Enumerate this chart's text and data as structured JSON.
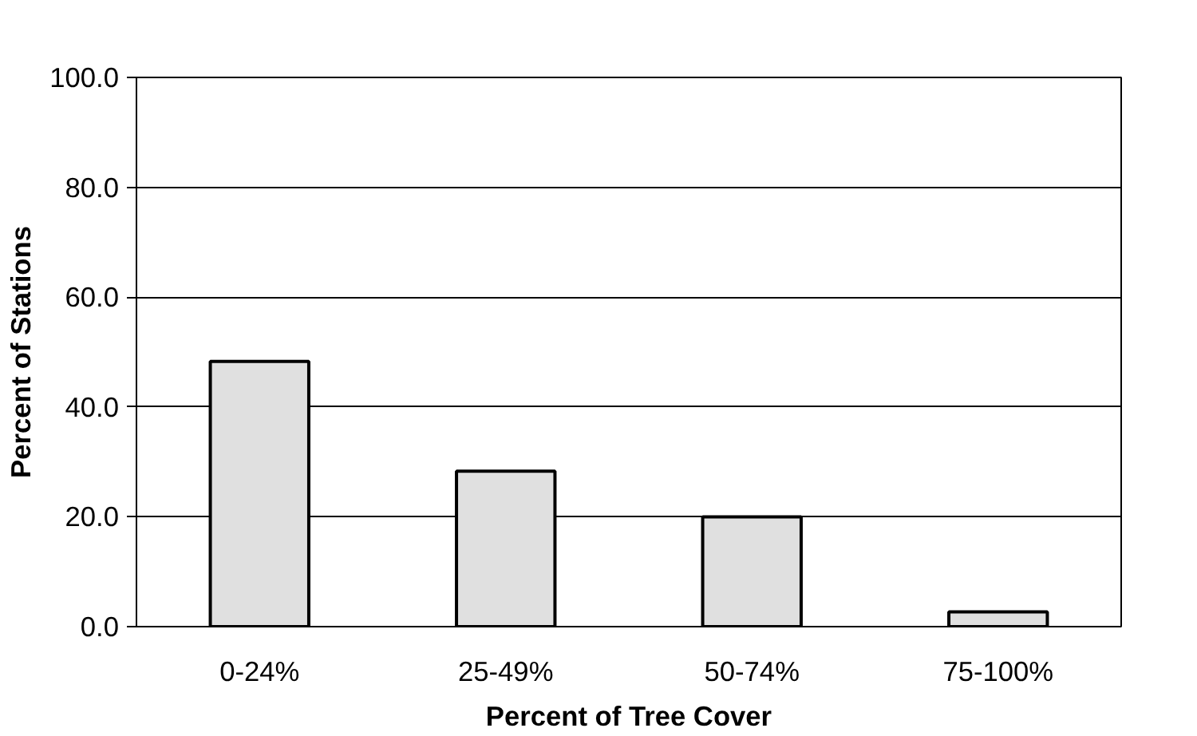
{
  "chart_data": {
    "type": "bar",
    "xlabel": "Percent of Tree Cover",
    "ylabel": "Percent of Stations",
    "categories": [
      "0-24%",
      "25-49%",
      "50-74%",
      "75-100%"
    ],
    "values": [
      48.3,
      28.3,
      20.0,
      2.7
    ],
    "color": "#e0e0e0",
    "ylim": [
      0,
      100
    ],
    "yticks": [
      {
        "value": 0,
        "label": "0.0"
      },
      {
        "value": 20,
        "label": "20.0"
      },
      {
        "value": 40,
        "label": "40.0"
      },
      {
        "value": 60,
        "label": "60.0"
      },
      {
        "value": 80,
        "label": "80.0"
      },
      {
        "value": 100,
        "label": "100.0"
      }
    ],
    "grid": "y"
  }
}
